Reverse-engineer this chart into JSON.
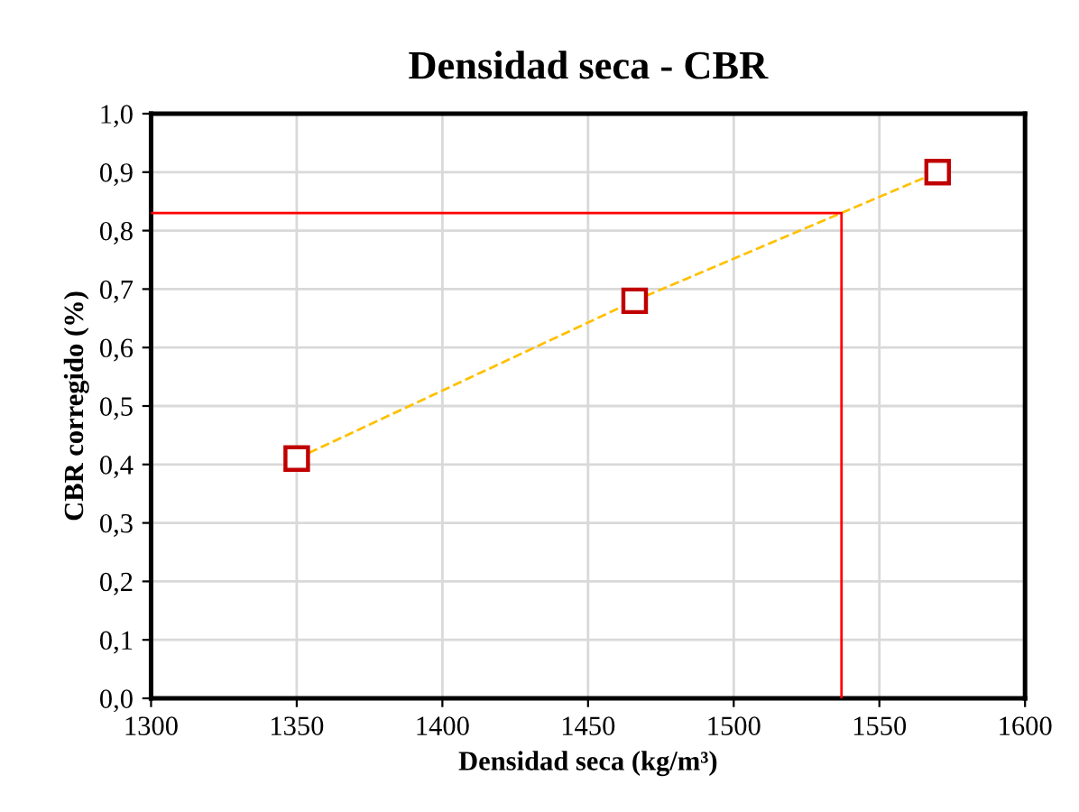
{
  "chart_data": {
    "type": "line",
    "title": "Densidad seca - CBR",
    "xlabel": "Densidad seca (kg/m³)",
    "ylabel": "CBR corregido (%)",
    "xlim": [
      1300,
      1600
    ],
    "xticks": [
      1300,
      1350,
      1400,
      1450,
      1500,
      1550,
      1600
    ],
    "ylim": [
      0,
      1.0
    ],
    "yticks": [
      {
        "value": 0,
        "label": "0,0"
      },
      {
        "value": 0.1,
        "label": "0,1"
      },
      {
        "value": 0.2,
        "label": "0,2"
      },
      {
        "value": 0.3,
        "label": "0,3"
      },
      {
        "value": 0.4,
        "label": "0,4"
      },
      {
        "value": 0.5,
        "label": "0,5"
      },
      {
        "value": 0.6,
        "label": "0,6"
      },
      {
        "value": 0.7,
        "label": "0,7"
      },
      {
        "value": 0.8,
        "label": "0,8"
      },
      {
        "value": 0.9,
        "label": "0,9"
      },
      {
        "value": 1.0,
        "label": "1,0"
      }
    ],
    "grid": true,
    "legend": false,
    "series": [
      {
        "x": [
          1350,
          1466,
          1570
        ],
        "values": [
          0.41,
          0.68,
          0.9
        ],
        "color": "#ffc000",
        "marker": "none",
        "line_style": "dashed"
      },
      {
        "type": "scatter",
        "x": [
          1350,
          1466,
          1570
        ],
        "values": [
          0.41,
          0.68,
          0.9
        ],
        "color": "#c00000",
        "marker": "square"
      },
      {
        "x": [
          1300,
          1537,
          1537
        ],
        "values": [
          0.83,
          0.83,
          0
        ],
        "color": "#ff0000",
        "marker": "none",
        "line_style": "solid"
      }
    ]
  }
}
